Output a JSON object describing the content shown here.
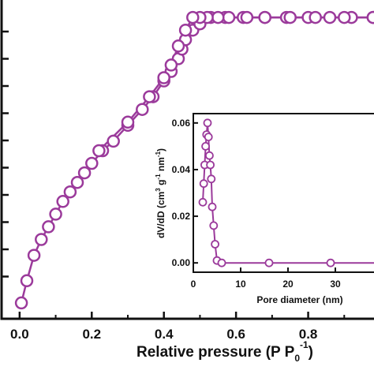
{
  "chart_data": [
    {
      "type": "scatter",
      "title": "",
      "xlabel": "Relative pressure (P P",
      "xlabel_subscript": "0",
      "xlabel_superscript": "-1",
      "xlabel_close": ")",
      "ylabel": "",
      "xlim": [
        -0.05,
        1.0
      ],
      "ylim": [
        0,
        1.02
      ],
      "x_ticks": [
        0.0,
        0.2,
        0.4,
        0.6,
        0.8
      ],
      "x_tick_labels": [
        "0.0",
        "0.2",
        "0.4",
        "0.6",
        "0.8"
      ],
      "y_ticks_count": 10,
      "grid": false,
      "legend": "none",
      "marker_color": "#9b3a9b",
      "series": [
        {
          "values": [
            [
              0.005,
              0.05
            ],
            [
              0.02,
              0.12
            ],
            [
              0.04,
              0.2
            ],
            [
              0.06,
              0.25
            ],
            [
              0.08,
              0.29
            ],
            [
              0.1,
              0.33
            ],
            [
              0.12,
              0.37
            ],
            [
              0.14,
              0.4
            ],
            [
              0.16,
              0.43
            ],
            [
              0.18,
              0.46
            ],
            [
              0.2,
              0.49
            ],
            [
              0.23,
              0.53
            ],
            [
              0.26,
              0.56
            ],
            [
              0.3,
              0.61
            ],
            [
              0.34,
              0.66
            ],
            [
              0.37,
              0.7
            ],
            [
              0.4,
              0.75
            ],
            [
              0.42,
              0.78
            ],
            [
              0.44,
              0.82
            ],
            [
              0.45,
              0.85
            ],
            [
              0.46,
              0.88
            ],
            [
              0.48,
              0.91
            ],
            [
              0.5,
              0.93
            ],
            [
              0.53,
              0.95
            ],
            [
              0.57,
              0.95
            ],
            [
              0.62,
              0.95
            ],
            [
              0.68,
              0.95
            ],
            [
              0.74,
              0.95
            ],
            [
              0.8,
              0.95
            ],
            [
              0.86,
              0.95
            ],
            [
              0.92,
              0.95
            ],
            [
              0.98,
              0.95
            ]
          ]
        },
        {
          "values": [
            [
              0.98,
              0.95
            ],
            [
              0.9,
              0.95
            ],
            [
              0.82,
              0.95
            ],
            [
              0.75,
              0.95
            ],
            [
              0.68,
              0.95
            ],
            [
              0.63,
              0.95
            ],
            [
              0.58,
              0.95
            ],
            [
              0.55,
              0.95
            ],
            [
              0.52,
              0.95
            ],
            [
              0.5,
              0.95
            ],
            [
              0.48,
              0.95
            ],
            [
              0.46,
              0.91
            ],
            [
              0.44,
              0.86
            ],
            [
              0.42,
              0.8
            ],
            [
              0.4,
              0.76
            ],
            [
              0.36,
              0.7
            ],
            [
              0.3,
              0.62
            ],
            [
              0.22,
              0.53
            ]
          ]
        }
      ]
    },
    {
      "type": "line",
      "title": "",
      "xlabel": "Pore diameter (nm)",
      "ylabel_parts": [
        "dV/dD (cm",
        "3",
        " g",
        "-1",
        " nm",
        "-1",
        ")"
      ],
      "xlim": [
        0,
        40
      ],
      "ylim": [
        -0.004,
        0.064
      ],
      "x_ticks": [
        0,
        10,
        20,
        30,
        40
      ],
      "x_tick_labels": [
        "0",
        "10",
        "20",
        "30",
        "40"
      ],
      "y_ticks": [
        0.0,
        0.02,
        0.04,
        0.06
      ],
      "y_tick_labels": [
        "0.00",
        "0.02",
        "0.04",
        "0.06"
      ],
      "grid": false,
      "legend": "none",
      "marker_color": "#9b3a9b",
      "series": [
        {
          "values": [
            [
              2.0,
              0.026
            ],
            [
              2.2,
              0.034
            ],
            [
              2.4,
              0.042
            ],
            [
              2.6,
              0.05
            ],
            [
              2.8,
              0.055
            ],
            [
              3.0,
              0.06
            ],
            [
              3.2,
              0.054
            ],
            [
              3.4,
              0.046
            ],
            [
              3.6,
              0.042
            ],
            [
              3.8,
              0.036
            ],
            [
              4.0,
              0.024
            ],
            [
              4.3,
              0.016
            ],
            [
              4.6,
              0.008
            ],
            [
              5.0,
              0.001
            ],
            [
              6.0,
              0.0
            ],
            [
              16,
              0.0
            ],
            [
              29,
              0.0
            ],
            [
              40,
              0.0
            ]
          ]
        }
      ]
    }
  ]
}
